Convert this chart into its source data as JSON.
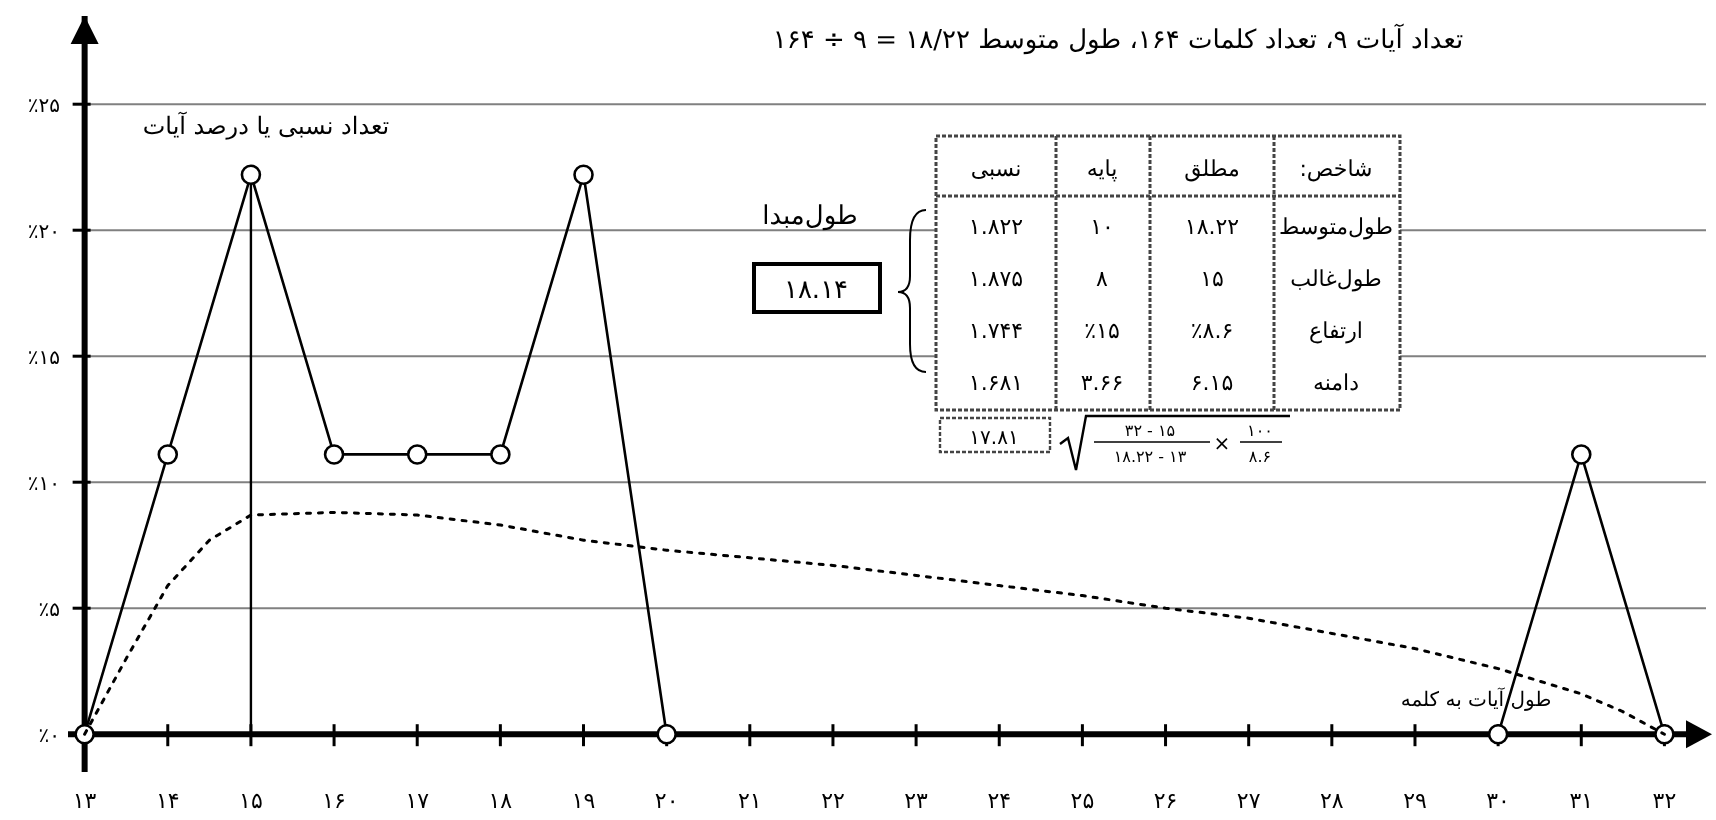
{
  "chart_data": {
    "type": "line",
    "title": "تعداد آیات ۹، تعداد کلمات ۱۶۴، طول متوسط ۱۸/۲۲ = ۹ ÷ ۱۶۴",
    "xlabel": "طول آیات به کلمه",
    "ylabel": "تعداد نسبی یا درصد آیات",
    "series": [
      {
        "color": "#000000",
        "marker": "circle",
        "line_style": "solid",
        "x": [
          13,
          14,
          15,
          16,
          17,
          18,
          19,
          20
        ],
        "values": [
          0,
          11.1,
          22.2,
          11.1,
          11.1,
          11.1,
          22.2,
          0
        ]
      },
      {
        "color": "#000000",
        "marker": "circle",
        "line_style": "solid",
        "x": [
          30,
          31,
          32
        ],
        "values": [
          0,
          11.1,
          0
        ]
      },
      {
        "color": "#000000",
        "marker": "none",
        "line_style": "dotted",
        "x": [
          13,
          13.5,
          14,
          14.5,
          15,
          16,
          17,
          18,
          19,
          20,
          21,
          22,
          23,
          24,
          25,
          26,
          27,
          28,
          29,
          30,
          31,
          31.5,
          32
        ],
        "values": [
          0,
          3,
          5.9,
          7.7,
          8.7,
          8.8,
          8.7,
          8.3,
          7.7,
          7.3,
          7,
          6.7,
          6.3,
          5.9,
          5.5,
          5,
          4.6,
          4,
          3.4,
          2.6,
          1.6,
          0.9,
          0
        ]
      }
    ],
    "xlim": [
      12.8,
      32.5
    ],
    "ylim": [
      -1.5,
      28.5
    ],
    "xticks": [
      {
        "value": 13,
        "label": "۱۳"
      },
      {
        "value": 14,
        "label": "۱۴"
      },
      {
        "value": 15,
        "label": "۱۵"
      },
      {
        "value": 16,
        "label": "۱۶"
      },
      {
        "value": 17,
        "label": "۱۷"
      },
      {
        "value": 18,
        "label": "۱۸"
      },
      {
        "value": 19,
        "label": "۱۹"
      },
      {
        "value": 20,
        "label": "۲۰"
      },
      {
        "value": 21,
        "label": "۲۱"
      },
      {
        "value": 22,
        "label": "۲۲"
      },
      {
        "value": 23,
        "label": "۲۳"
      },
      {
        "value": 24,
        "label": "۲۴"
      },
      {
        "value": 25,
        "label": "۲۵"
      },
      {
        "value": 26,
        "label": "۲۶"
      },
      {
        "value": 27,
        "label": "۲۷"
      },
      {
        "value": 28,
        "label": "۲۸"
      },
      {
        "value": 29,
        "label": "۲۹"
      },
      {
        "value": 30,
        "label": "۳۰"
      },
      {
        "value": 31,
        "label": "۳۱"
      },
      {
        "value": 32,
        "label": "۳۲"
      }
    ],
    "yticks": [
      {
        "value": 0,
        "label": "٪۰"
      },
      {
        "value": 5,
        "label": "٪۵"
      },
      {
        "value": 10,
        "label": "٪۱۰"
      },
      {
        "value": 15,
        "label": "٪۱۵"
      },
      {
        "value": 20,
        "label": "٪۲۰"
      },
      {
        "value": 25,
        "label": "٪۲۵"
      }
    ],
    "grid": "y",
    "ref_lines": [
      {
        "axis": "x",
        "value": 15
      }
    ],
    "annotations": [
      "شاخص:",
      "مطلق",
      "پایه",
      "نسبی",
      "طول‌متوسط",
      "۱۸.۲۲",
      "۱۰",
      "۱.۸۲۲",
      "طول‌غالب",
      "۱۵",
      "۸",
      "۱.۸۷۵",
      "ارتفاع",
      "٪۸.۶",
      "٪۱۵",
      "۱.۷۴۴",
      "دامنه",
      "۶.۱۵",
      "۳.۶۶",
      "۱.۶۸۱",
      "طول‌مبدا",
      "۱۸.۱۴",
      "۱۷.۸۱",
      "۳۲ - ۱۵",
      "۱۸.۲۲ - ۱۳",
      "×",
      "۱۰۰",
      "۸.۶"
    ]
  }
}
